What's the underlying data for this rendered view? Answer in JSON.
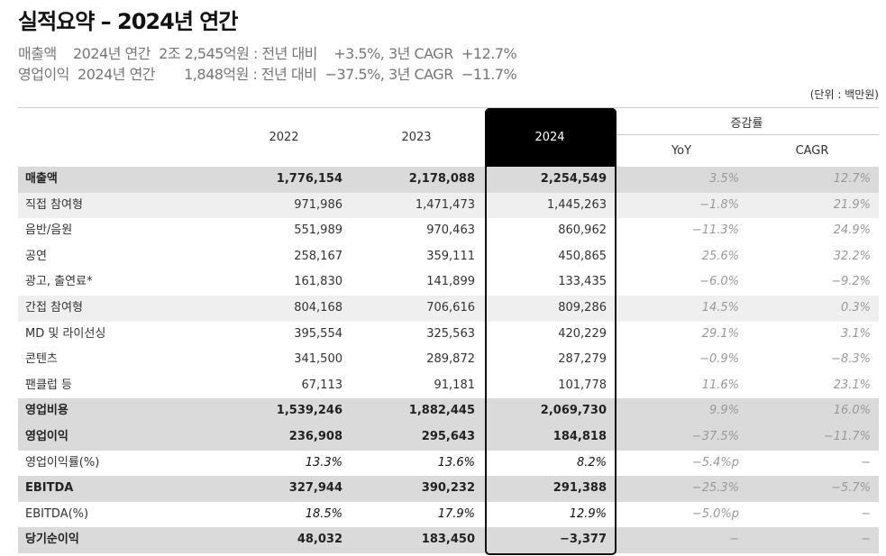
{
  "header": {
    "title": "실적요약 – 2024년 연간",
    "summary": [
      "매출액    2024년 연간  2조 2,545억원 : 전년 대비    +3.5%, 3년 CAGR  +12.7%",
      "영업이익  2024년 연간       1,848억원 : 전년 대비  −37.5%, 3년 CAGR  −11.7%"
    ],
    "unit": "(단위 : 백만원)"
  },
  "table": {
    "columns": [
      "2022",
      "2023",
      "2024"
    ],
    "change_group": "증감률",
    "change_columns": [
      "YoY",
      "CAGR"
    ],
    "rows": [
      [
        "매출액",
        "1,776,154",
        "2,178,088",
        "2,254,549",
        "3.5%",
        "12.7%"
      ],
      [
        "직접 참여형",
        "971,986",
        "1,471,473",
        "1,445,263",
        "−1.8%",
        "21.9%"
      ],
      [
        "음반/음원",
        "551,989",
        "970,463",
        "860,962",
        "−11.3%",
        "24.9%"
      ],
      [
        "공연",
        "258,167",
        "359,111",
        "450,865",
        "25.6%",
        "32.2%"
      ],
      [
        "광고, 출연료*",
        "161,830",
        "141,899",
        "133,435",
        "−6.0%",
        "−9.2%"
      ],
      [
        "간접 참여형",
        "804,168",
        "706,616",
        "809,286",
        "14.5%",
        "0.3%"
      ],
      [
        "MD 및 라이선싱",
        "395,554",
        "325,563",
        "420,229",
        "29.1%",
        "3.1%"
      ],
      [
        "콘텐츠",
        "341,500",
        "289,872",
        "287,279",
        "−0.9%",
        "−8.3%"
      ],
      [
        "팬클럽 등",
        "67,113",
        "91,181",
        "101,778",
        "11.6%",
        "23.1%"
      ],
      [
        "영업비용",
        "1,539,246",
        "1,882,445",
        "2,069,730",
        "9.9%",
        "16.0%"
      ],
      [
        "영업이익",
        "236,908",
        "295,643",
        "184,818",
        "−37.5%",
        "−11.7%"
      ],
      [
        "영업이익률(%)",
        "13.3%",
        "13.6%",
        "8.2%",
        "−5.4%p",
        "−"
      ],
      [
        "EBITDA",
        "327,944",
        "390,232",
        "291,388",
        "−25.3%",
        "−5.7%"
      ],
      [
        "EBITDA(%)",
        "18.5%",
        "17.9%",
        "12.9%",
        "−5.0%p",
        "−"
      ],
      [
        "당기순이익",
        "48,032",
        "183,450",
        "−3,377",
        "−",
        "−"
      ]
    ]
  }
}
